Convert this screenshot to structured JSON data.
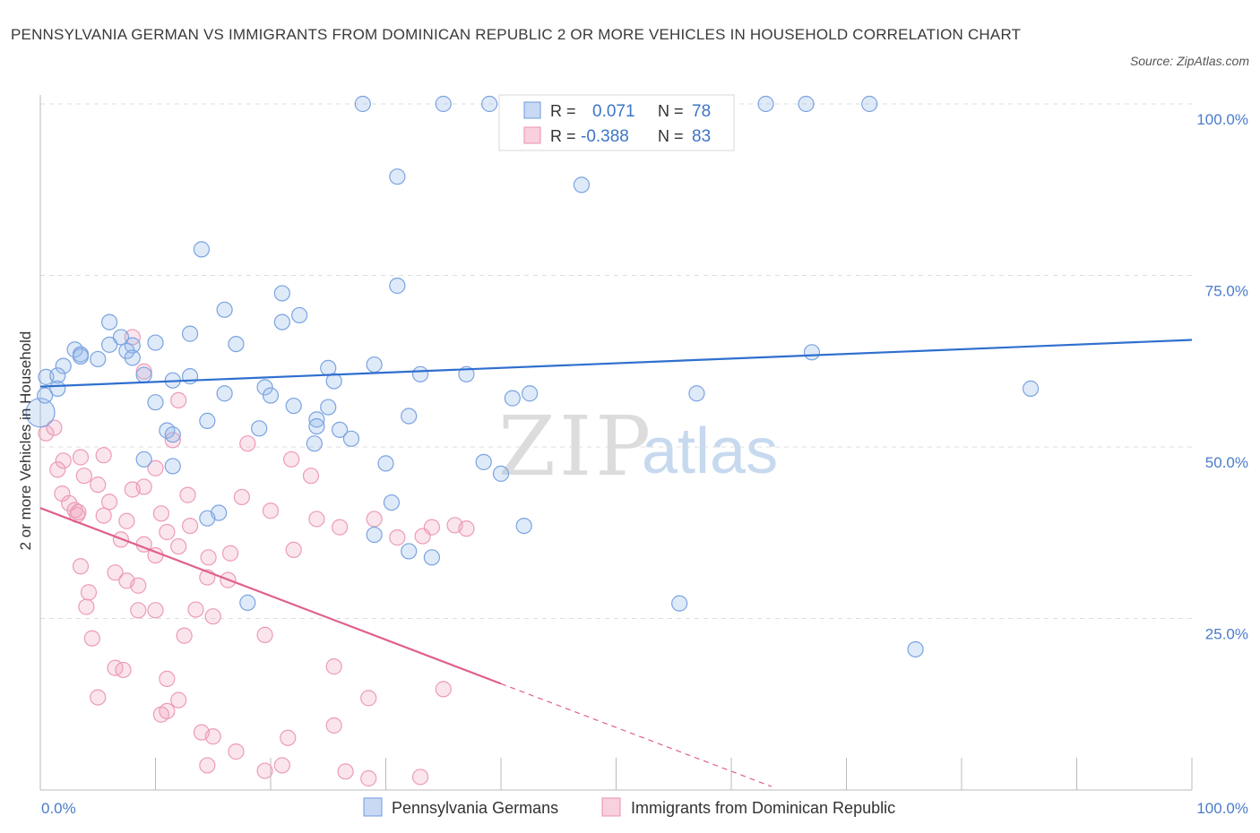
{
  "title": "PENNSYLVANIA GERMAN VS IMMIGRANTS FROM DOMINICAN REPUBLIC 2 OR MORE VEHICLES IN HOUSEHOLD CORRELATION CHART",
  "source": "Source: ZipAtlas.com",
  "watermark": {
    "zip": "ZIP",
    "atlas": "atlas"
  },
  "colors": {
    "blue": "#5b8fd9",
    "pink": "#e87ca0",
    "blue_line": "#2f6fcf",
    "pink_line": "#e0608a",
    "tick": "#4a7cc9"
  },
  "legend": {
    "rows": [
      {
        "r_label": "R =",
        "r_value": "0.071",
        "n_label": "N =",
        "n_value": "78"
      },
      {
        "r_label": "R =",
        "r_value": "-0.388",
        "n_label": "N =",
        "n_value": "83"
      }
    ]
  },
  "bottom_legend": [
    "Pennsylvania Germans",
    "Immigrants from Dominican Republic"
  ],
  "chart_data": {
    "type": "scatter",
    "ylabel": "2 or more Vehicles in Household",
    "x_ticks": [
      "0.0%",
      "100.0%"
    ],
    "y_ticks": [
      "100.0%",
      "75.0%",
      "50.0%",
      "25.0%"
    ],
    "xlim": [
      0,
      100
    ],
    "ylim": [
      0,
      100
    ],
    "grid": true,
    "series": [
      {
        "name": "Pennsylvania Germans",
        "trend": {
          "x": [
            0,
            100
          ],
          "y": [
            58.8,
            65.6
          ]
        },
        "points": [
          [
            28,
            100
          ],
          [
            31,
            89.4
          ],
          [
            47,
            88.2
          ],
          [
            63,
            100
          ],
          [
            14,
            78.8
          ],
          [
            31,
            73.5
          ],
          [
            21,
            72.4
          ],
          [
            16,
            70
          ],
          [
            22.5,
            69.2
          ],
          [
            21,
            68.2
          ],
          [
            6,
            68.2
          ],
          [
            13,
            66.5
          ],
          [
            7,
            66
          ],
          [
            10,
            65.2
          ],
          [
            8,
            64.8
          ],
          [
            6,
            64.9
          ],
          [
            17,
            65
          ],
          [
            3,
            64.2
          ],
          [
            7.5,
            64
          ],
          [
            3.5,
            63.5
          ],
          [
            3.5,
            63.2
          ],
          [
            5,
            62.8
          ],
          [
            8,
            63
          ],
          [
            2,
            61.8
          ],
          [
            25,
            61.5
          ],
          [
            0.5,
            60.2
          ],
          [
            1.5,
            60.4
          ],
          [
            9,
            60.5
          ],
          [
            13,
            60.3
          ],
          [
            11.5,
            59.7
          ],
          [
            29,
            62
          ],
          [
            33,
            60.6
          ],
          [
            37,
            60.6
          ],
          [
            25.5,
            59.6
          ],
          [
            1.5,
            58.5
          ],
          [
            19.5,
            58.7
          ],
          [
            16,
            57.8
          ],
          [
            20,
            57.5
          ],
          [
            42.5,
            57.8
          ],
          [
            41,
            57.1
          ],
          [
            10,
            56.5
          ],
          [
            22,
            56
          ],
          [
            25,
            55.8
          ],
          [
            14.5,
            53.8
          ],
          [
            24,
            54
          ],
          [
            32,
            54.5
          ],
          [
            24,
            53
          ],
          [
            26,
            52.5
          ],
          [
            19,
            52.7
          ],
          [
            11,
            52.4
          ],
          [
            11.5,
            51.8
          ],
          [
            27,
            51.2
          ],
          [
            23.8,
            50.5
          ],
          [
            9,
            48.2
          ],
          [
            30,
            47.6
          ],
          [
            38.5,
            47.8
          ],
          [
            11.5,
            47.2
          ],
          [
            40,
            46.1
          ],
          [
            30.5,
            41.9
          ],
          [
            15.5,
            40.4
          ],
          [
            14.5,
            39.6
          ],
          [
            42,
            38.5
          ],
          [
            29,
            37.2
          ],
          [
            32,
            34.8
          ],
          [
            34,
            33.9
          ],
          [
            18,
            27.3
          ],
          [
            55.5,
            27.2
          ],
          [
            76,
            20.5
          ],
          [
            67,
            63.8
          ],
          [
            86,
            58.5
          ],
          [
            57,
            57.8
          ],
          [
            35,
            100
          ],
          [
            66.5,
            100
          ],
          [
            72,
            100
          ],
          [
            50,
            100
          ],
          [
            39,
            100
          ],
          [
            0,
            55
          ],
          [
            0.4,
            57.5
          ]
        ]
      },
      {
        "name": "Immigrants from Dominican Republic",
        "trend": {
          "x": [
            0,
            40
          ],
          "y": [
            41.1,
            15.5
          ]
        },
        "trend_dashed": {
          "x": [
            40,
            63.5
          ],
          "y": [
            15.5,
            0.5
          ]
        },
        "points": [
          [
            0.5,
            52
          ],
          [
            1.2,
            52.8
          ],
          [
            8,
            66
          ],
          [
            9,
            61
          ],
          [
            12,
            56.8
          ],
          [
            11.5,
            51
          ],
          [
            18,
            50.5
          ],
          [
            5.5,
            48.8
          ],
          [
            3.5,
            48.5
          ],
          [
            2,
            48
          ],
          [
            1.5,
            46.7
          ],
          [
            10,
            46.9
          ],
          [
            3.8,
            45.8
          ],
          [
            5,
            44.5
          ],
          [
            8,
            43.8
          ],
          [
            12.8,
            43
          ],
          [
            1.9,
            43.2
          ],
          [
            17.5,
            42.7
          ],
          [
            6,
            42
          ],
          [
            2.5,
            41.8
          ],
          [
            3,
            40.8
          ],
          [
            3.2,
            40.1
          ],
          [
            5.5,
            40
          ],
          [
            10.5,
            40.3
          ],
          [
            20,
            40.7
          ],
          [
            24,
            39.5
          ],
          [
            29,
            39.5
          ],
          [
            7.5,
            39.2
          ],
          [
            13,
            38.5
          ],
          [
            26,
            38.3
          ],
          [
            34,
            38.3
          ],
          [
            36,
            38.6
          ],
          [
            37,
            38.1
          ],
          [
            7,
            36.5
          ],
          [
            9,
            35.8
          ],
          [
            12,
            35.5
          ],
          [
            22,
            35
          ],
          [
            16.5,
            34.5
          ],
          [
            10,
            34.2
          ],
          [
            3.5,
            32.6
          ],
          [
            6.5,
            31.7
          ],
          [
            14.5,
            31
          ],
          [
            16.3,
            30.6
          ],
          [
            8.5,
            29.8
          ],
          [
            4.2,
            28.8
          ],
          [
            4,
            26.7
          ],
          [
            8.5,
            26.2
          ],
          [
            10,
            26.2
          ],
          [
            13.5,
            26.3
          ],
          [
            15,
            25.3
          ],
          [
            4.5,
            22.1
          ],
          [
            12.5,
            22.5
          ],
          [
            19.5,
            22.6
          ],
          [
            6.5,
            17.8
          ],
          [
            7.2,
            17.5
          ],
          [
            11,
            16.2
          ],
          [
            25.5,
            18
          ],
          [
            35,
            14.7
          ],
          [
            5,
            13.5
          ],
          [
            12,
            13.1
          ],
          [
            28.5,
            13.4
          ],
          [
            10.5,
            11
          ],
          [
            11,
            11.5
          ],
          [
            25.5,
            9.4
          ],
          [
            14,
            8.4
          ],
          [
            15,
            7.8
          ],
          [
            21.5,
            7.6
          ],
          [
            17,
            5.6
          ],
          [
            14.5,
            3.6
          ],
          [
            21,
            3.6
          ],
          [
            19.5,
            2.8
          ],
          [
            26.5,
            2.7
          ],
          [
            28.5,
            1.7
          ],
          [
            33,
            1.9
          ],
          [
            23.5,
            45.8
          ],
          [
            21.8,
            48.2
          ],
          [
            7.5,
            30.5
          ],
          [
            9,
            44.2
          ],
          [
            14.6,
            33.9
          ],
          [
            11,
            37.6
          ],
          [
            31,
            36.8
          ],
          [
            33.2,
            37
          ],
          [
            3.3,
            40.5
          ]
        ]
      }
    ]
  }
}
